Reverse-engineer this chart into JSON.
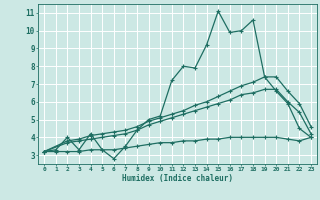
{
  "title": "",
  "xlabel": "Humidex (Indice chaleur)",
  "bg_color": "#cce8e4",
  "line_color": "#1e6e62",
  "grid_color": "#ffffff",
  "xlim": [
    -0.5,
    23.5
  ],
  "ylim": [
    2.5,
    11.5
  ],
  "xticks": [
    0,
    1,
    2,
    3,
    4,
    5,
    6,
    7,
    8,
    9,
    10,
    11,
    12,
    13,
    14,
    15,
    16,
    17,
    18,
    19,
    20,
    21,
    22,
    23
  ],
  "yticks": [
    3,
    4,
    5,
    6,
    7,
    8,
    9,
    10,
    11
  ],
  "line1_x": [
    0,
    1,
    2,
    3,
    4,
    5,
    6,
    7,
    8,
    9,
    10,
    11,
    12,
    13,
    14,
    15,
    16,
    17,
    18,
    19,
    20,
    21,
    22,
    23
  ],
  "line1_y": [
    3.2,
    3.3,
    4.0,
    3.3,
    4.2,
    3.3,
    2.8,
    3.5,
    4.4,
    5.0,
    5.2,
    7.2,
    8.0,
    7.9,
    9.2,
    11.1,
    9.9,
    10.0,
    10.6,
    7.4,
    6.6,
    5.9,
    4.5,
    4.0
  ],
  "line2_x": [
    0,
    2,
    3,
    4,
    5,
    6,
    7,
    8,
    9,
    10,
    11,
    12,
    13,
    14,
    15,
    16,
    17,
    18,
    19,
    20,
    21,
    22,
    23
  ],
  "line2_y": [
    3.2,
    3.8,
    3.9,
    4.1,
    4.2,
    4.3,
    4.4,
    4.6,
    4.9,
    5.1,
    5.3,
    5.5,
    5.8,
    6.0,
    6.3,
    6.6,
    6.9,
    7.1,
    7.4,
    7.4,
    6.6,
    5.9,
    4.6
  ],
  "line3_x": [
    0,
    2,
    3,
    4,
    5,
    6,
    7,
    8,
    9,
    10,
    11,
    12,
    13,
    14,
    15,
    16,
    17,
    18,
    19,
    20,
    21,
    22,
    23
  ],
  "line3_y": [
    3.2,
    3.7,
    3.8,
    3.9,
    4.0,
    4.1,
    4.2,
    4.4,
    4.7,
    4.9,
    5.1,
    5.3,
    5.5,
    5.7,
    5.9,
    6.1,
    6.4,
    6.5,
    6.7,
    6.7,
    6.0,
    5.4,
    4.2
  ],
  "line4_x": [
    0,
    1,
    2,
    3,
    4,
    5,
    6,
    7,
    8,
    9,
    10,
    11,
    12,
    13,
    14,
    15,
    16,
    17,
    18,
    19,
    20,
    21,
    22,
    23
  ],
  "line4_y": [
    3.2,
    3.2,
    3.2,
    3.2,
    3.3,
    3.3,
    3.3,
    3.4,
    3.5,
    3.6,
    3.7,
    3.7,
    3.8,
    3.8,
    3.9,
    3.9,
    4.0,
    4.0,
    4.0,
    4.0,
    4.0,
    3.9,
    3.8,
    4.0
  ]
}
